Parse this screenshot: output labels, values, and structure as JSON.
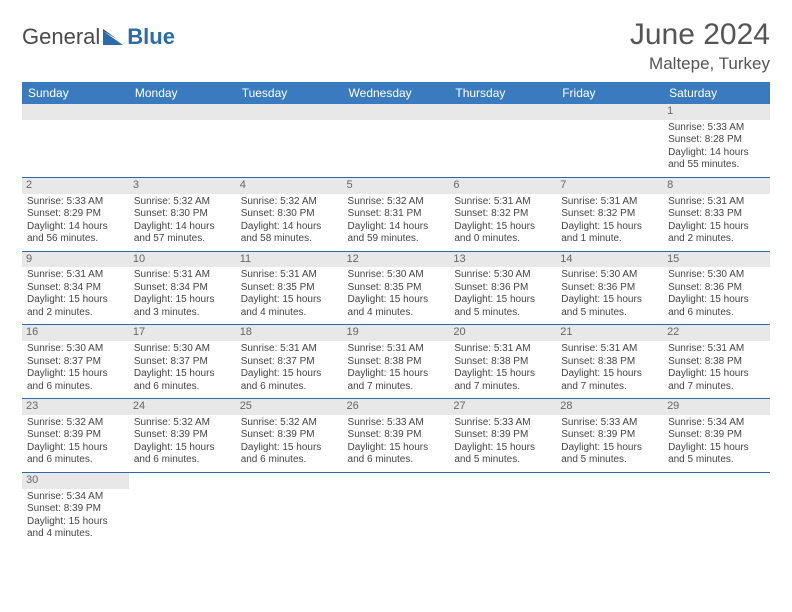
{
  "logo": {
    "text1": "General",
    "text2": "Blue"
  },
  "header": {
    "title": "June 2024",
    "location": "Maltepe, Turkey"
  },
  "colors": {
    "header_bg": "#3a7bbf",
    "header_text": "#ffffff",
    "daynum_bg": "#e8e8e8",
    "row_border": "#2a6aa8",
    "logo_blue": "#2b6ca8"
  },
  "weekdays": [
    "Sunday",
    "Monday",
    "Tuesday",
    "Wednesday",
    "Thursday",
    "Friday",
    "Saturday"
  ],
  "weeks": [
    [
      null,
      null,
      null,
      null,
      null,
      null,
      {
        "d": "1",
        "sr": "Sunrise: 5:33 AM",
        "ss": "Sunset: 8:28 PM",
        "dl": "Daylight: 14 hours and 55 minutes."
      }
    ],
    [
      {
        "d": "2",
        "sr": "Sunrise: 5:33 AM",
        "ss": "Sunset: 8:29 PM",
        "dl": "Daylight: 14 hours and 56 minutes."
      },
      {
        "d": "3",
        "sr": "Sunrise: 5:32 AM",
        "ss": "Sunset: 8:30 PM",
        "dl": "Daylight: 14 hours and 57 minutes."
      },
      {
        "d": "4",
        "sr": "Sunrise: 5:32 AM",
        "ss": "Sunset: 8:30 PM",
        "dl": "Daylight: 14 hours and 58 minutes."
      },
      {
        "d": "5",
        "sr": "Sunrise: 5:32 AM",
        "ss": "Sunset: 8:31 PM",
        "dl": "Daylight: 14 hours and 59 minutes."
      },
      {
        "d": "6",
        "sr": "Sunrise: 5:31 AM",
        "ss": "Sunset: 8:32 PM",
        "dl": "Daylight: 15 hours and 0 minutes."
      },
      {
        "d": "7",
        "sr": "Sunrise: 5:31 AM",
        "ss": "Sunset: 8:32 PM",
        "dl": "Daylight: 15 hours and 1 minute."
      },
      {
        "d": "8",
        "sr": "Sunrise: 5:31 AM",
        "ss": "Sunset: 8:33 PM",
        "dl": "Daylight: 15 hours and 2 minutes."
      }
    ],
    [
      {
        "d": "9",
        "sr": "Sunrise: 5:31 AM",
        "ss": "Sunset: 8:34 PM",
        "dl": "Daylight: 15 hours and 2 minutes."
      },
      {
        "d": "10",
        "sr": "Sunrise: 5:31 AM",
        "ss": "Sunset: 8:34 PM",
        "dl": "Daylight: 15 hours and 3 minutes."
      },
      {
        "d": "11",
        "sr": "Sunrise: 5:31 AM",
        "ss": "Sunset: 8:35 PM",
        "dl": "Daylight: 15 hours and 4 minutes."
      },
      {
        "d": "12",
        "sr": "Sunrise: 5:30 AM",
        "ss": "Sunset: 8:35 PM",
        "dl": "Daylight: 15 hours and 4 minutes."
      },
      {
        "d": "13",
        "sr": "Sunrise: 5:30 AM",
        "ss": "Sunset: 8:36 PM",
        "dl": "Daylight: 15 hours and 5 minutes."
      },
      {
        "d": "14",
        "sr": "Sunrise: 5:30 AM",
        "ss": "Sunset: 8:36 PM",
        "dl": "Daylight: 15 hours and 5 minutes."
      },
      {
        "d": "15",
        "sr": "Sunrise: 5:30 AM",
        "ss": "Sunset: 8:36 PM",
        "dl": "Daylight: 15 hours and 6 minutes."
      }
    ],
    [
      {
        "d": "16",
        "sr": "Sunrise: 5:30 AM",
        "ss": "Sunset: 8:37 PM",
        "dl": "Daylight: 15 hours and 6 minutes."
      },
      {
        "d": "17",
        "sr": "Sunrise: 5:30 AM",
        "ss": "Sunset: 8:37 PM",
        "dl": "Daylight: 15 hours and 6 minutes."
      },
      {
        "d": "18",
        "sr": "Sunrise: 5:31 AM",
        "ss": "Sunset: 8:37 PM",
        "dl": "Daylight: 15 hours and 6 minutes."
      },
      {
        "d": "19",
        "sr": "Sunrise: 5:31 AM",
        "ss": "Sunset: 8:38 PM",
        "dl": "Daylight: 15 hours and 7 minutes."
      },
      {
        "d": "20",
        "sr": "Sunrise: 5:31 AM",
        "ss": "Sunset: 8:38 PM",
        "dl": "Daylight: 15 hours and 7 minutes."
      },
      {
        "d": "21",
        "sr": "Sunrise: 5:31 AM",
        "ss": "Sunset: 8:38 PM",
        "dl": "Daylight: 15 hours and 7 minutes."
      },
      {
        "d": "22",
        "sr": "Sunrise: 5:31 AM",
        "ss": "Sunset: 8:38 PM",
        "dl": "Daylight: 15 hours and 7 minutes."
      }
    ],
    [
      {
        "d": "23",
        "sr": "Sunrise: 5:32 AM",
        "ss": "Sunset: 8:39 PM",
        "dl": "Daylight: 15 hours and 6 minutes."
      },
      {
        "d": "24",
        "sr": "Sunrise: 5:32 AM",
        "ss": "Sunset: 8:39 PM",
        "dl": "Daylight: 15 hours and 6 minutes."
      },
      {
        "d": "25",
        "sr": "Sunrise: 5:32 AM",
        "ss": "Sunset: 8:39 PM",
        "dl": "Daylight: 15 hours and 6 minutes."
      },
      {
        "d": "26",
        "sr": "Sunrise: 5:33 AM",
        "ss": "Sunset: 8:39 PM",
        "dl": "Daylight: 15 hours and 6 minutes."
      },
      {
        "d": "27",
        "sr": "Sunrise: 5:33 AM",
        "ss": "Sunset: 8:39 PM",
        "dl": "Daylight: 15 hours and 5 minutes."
      },
      {
        "d": "28",
        "sr": "Sunrise: 5:33 AM",
        "ss": "Sunset: 8:39 PM",
        "dl": "Daylight: 15 hours and 5 minutes."
      },
      {
        "d": "29",
        "sr": "Sunrise: 5:34 AM",
        "ss": "Sunset: 8:39 PM",
        "dl": "Daylight: 15 hours and 5 minutes."
      }
    ],
    [
      {
        "d": "30",
        "sr": "Sunrise: 5:34 AM",
        "ss": "Sunset: 8:39 PM",
        "dl": "Daylight: 15 hours and 4 minutes."
      },
      null,
      null,
      null,
      null,
      null,
      null
    ]
  ]
}
